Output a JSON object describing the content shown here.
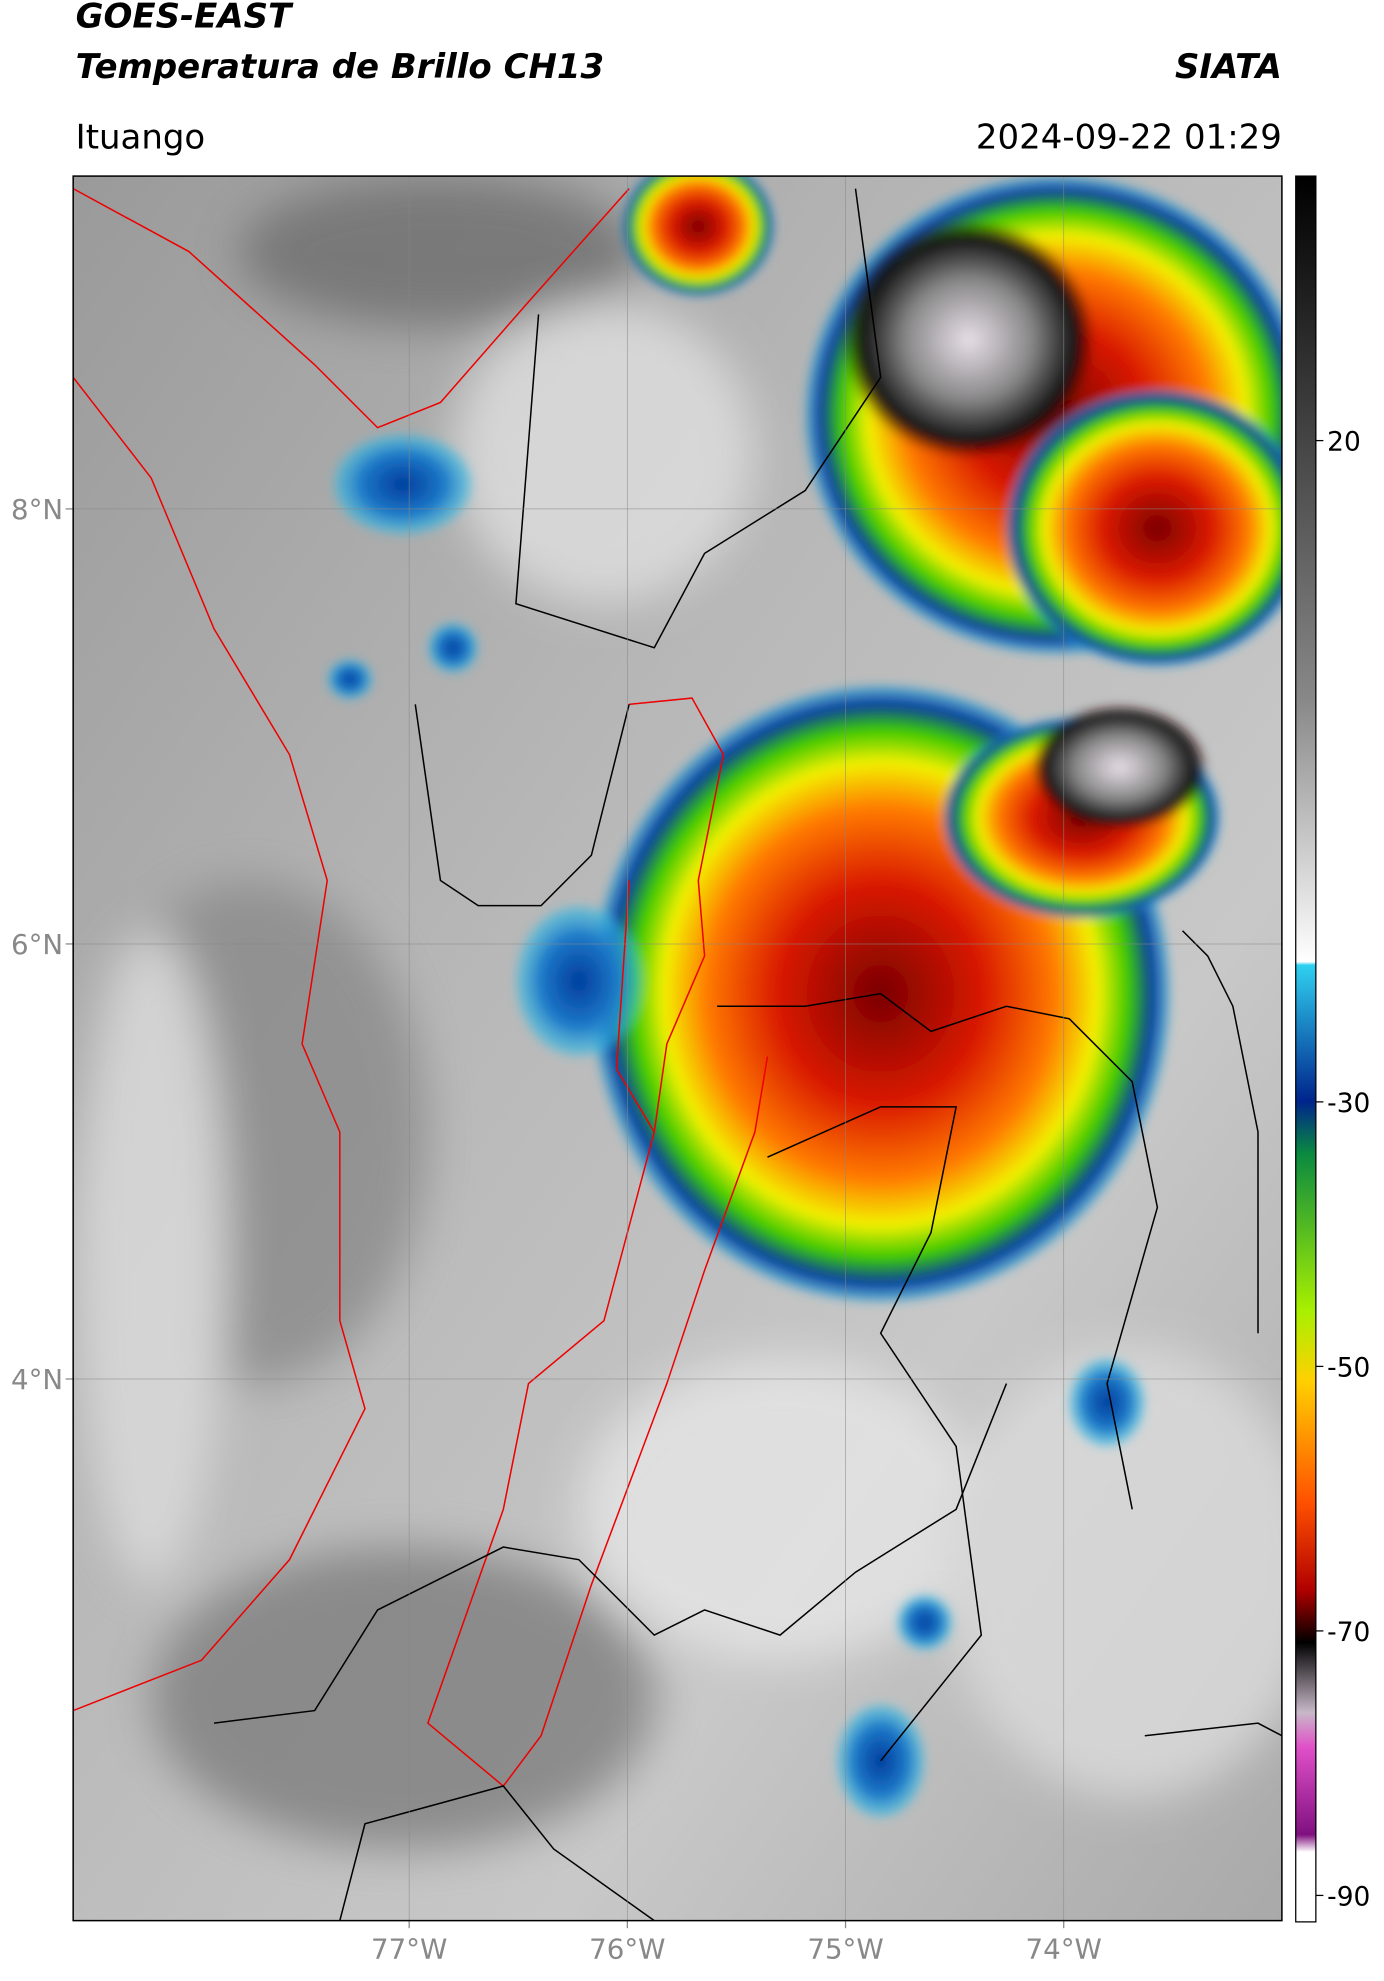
{
  "header": {
    "title": "GOES-EAST",
    "subtitle": "Temperatura de Brillo CH13",
    "brand": "SIATA",
    "location": "Ituango",
    "datetime": "2024-09-22 01:29"
  },
  "map": {
    "xlim": [
      -78.54,
      -73.0
    ],
    "ylim": [
      1.51,
      9.53
    ],
    "xticks": [
      {
        "value": -77,
        "label": "77°W"
      },
      {
        "value": -76,
        "label": "76°W"
      },
      {
        "value": -75,
        "label": "75°W"
      },
      {
        "value": -74,
        "label": "74°W"
      }
    ],
    "yticks": [
      {
        "value": 8,
        "label": "8°N"
      },
      {
        "value": 6,
        "label": "6°N"
      },
      {
        "value": 4,
        "label": "4°N"
      }
    ],
    "grid": true
  },
  "colorbar": {
    "lim": [
      40,
      -92
    ],
    "ticks": [
      20,
      -30,
      -50,
      -70,
      -90
    ]
  }
}
